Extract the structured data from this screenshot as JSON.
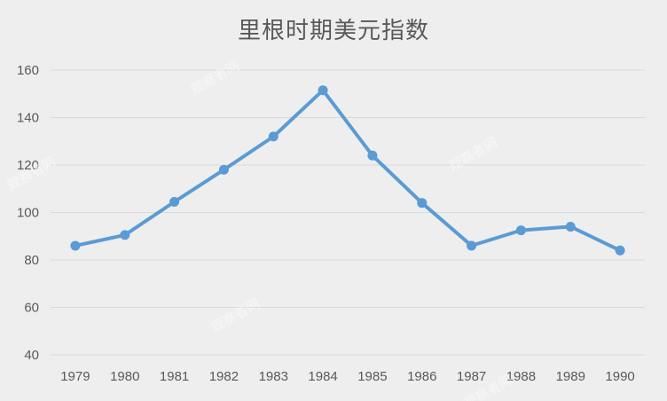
{
  "chart_data": {
    "type": "line",
    "title": "里根时期美元指数",
    "xlabel": "",
    "ylabel": "",
    "categories": [
      "1979",
      "1980",
      "1981",
      "1982",
      "1983",
      "1984",
      "1985",
      "1986",
      "1987",
      "1988",
      "1989",
      "1990"
    ],
    "series": [
      {
        "values": [
          86,
          90.5,
          104.5,
          118,
          132,
          151.5,
          124,
          104,
          86,
          92.5,
          94,
          84
        ]
      }
    ],
    "ylim": [
      40,
      160
    ],
    "yticks": [
      40,
      60,
      80,
      100,
      120,
      140,
      160
    ],
    "grid": true,
    "legend": "none",
    "line_color": "#5b9bd5"
  },
  "watermark": "观察者网"
}
